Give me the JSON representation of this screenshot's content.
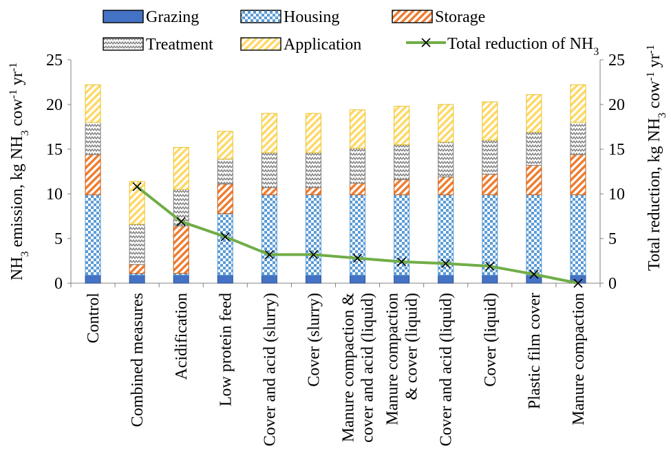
{
  "chart_data": {
    "type": "bar",
    "stacked": true,
    "categories": [
      "Control",
      "Combined measures",
      "Acidification",
      "Low protein feed",
      "Cover and acid (slurry)",
      "Cover (slurry)",
      "Manure compaction & cover and acid (liquid)",
      "Manure compaction & cover (liquid)",
      "Cover and acid (liquid)",
      "Cover (liquid)",
      "Plastic film cover",
      "Manure compaction"
    ],
    "category_lines": [
      [
        "Control"
      ],
      [
        "Combined measures"
      ],
      [
        "Acidification"
      ],
      [
        "Low protein feed"
      ],
      [
        "Cover and acid (slurry)"
      ],
      [
        "Cover (slurry)"
      ],
      [
        "Manure compaction &",
        "cover and acid (liquid)"
      ],
      [
        "Manure compaction",
        "& cover (liquid)"
      ],
      [
        "Cover and acid (liquid)"
      ],
      [
        "Cover (liquid)"
      ],
      [
        "Plastic film cover"
      ],
      [
        "Manure compaction"
      ]
    ],
    "series": [
      {
        "name": "Grazing",
        "pattern": "solid",
        "color": "#4472c4",
        "values": [
          0.9,
          0.9,
          0.9,
          0.9,
          0.9,
          0.9,
          0.9,
          0.9,
          0.9,
          0.9,
          0.9,
          0.9
        ]
      },
      {
        "name": "Housing",
        "pattern": "checker",
        "color": "#5b9bd5",
        "values": [
          9.0,
          0.2,
          0.2,
          6.9,
          9.0,
          9.0,
          9.0,
          9.0,
          9.0,
          9.0,
          9.0,
          9.0
        ]
      },
      {
        "name": "Storage",
        "pattern": "diagonal",
        "color": "#ed7d31",
        "values": [
          4.5,
          1.0,
          5.3,
          3.3,
          0.8,
          0.8,
          1.3,
          1.7,
          2.0,
          2.3,
          3.3,
          4.5
        ]
      },
      {
        "name": "Treatment",
        "pattern": "wave",
        "color": "#808080",
        "values": [
          3.6,
          4.5,
          4.1,
          2.8,
          3.9,
          3.9,
          3.9,
          3.9,
          3.9,
          3.8,
          3.7,
          3.6
        ]
      },
      {
        "name": "Application",
        "pattern": "diagonal",
        "color": "#ffd966",
        "values": [
          4.2,
          4.8,
          4.7,
          3.1,
          4.4,
          4.4,
          4.3,
          4.3,
          4.2,
          4.3,
          4.2,
          4.2
        ]
      }
    ],
    "line_series": {
      "name": "Total reduction of NH",
      "name_sub": "3",
      "color": "#70ad47",
      "marker": "x",
      "axis": "right",
      "values": [
        null,
        10.8,
        6.9,
        5.2,
        3.2,
        3.2,
        2.8,
        2.4,
        2.2,
        1.9,
        1.0,
        0.0
      ]
    },
    "y_left": {
      "min": 0,
      "max": 25,
      "ticks": [
        0,
        5,
        10,
        15,
        20,
        25
      ]
    },
    "y_right": {
      "min": 0,
      "max": 25,
      "ticks": [
        0,
        5,
        10,
        15,
        20,
        25
      ]
    },
    "ylabel_left": {
      "prefix": "NH",
      "sub": "3",
      "mid": " emission, kg NH",
      "sub2": "3",
      "mid2": " cow",
      "sup": "-1",
      "end": " yr",
      "sup2": "-1"
    },
    "ylabel_right": {
      "prefix": "Total reduction, kg NH",
      "sub": "3",
      "mid": " cow",
      "sup": "-1",
      "end": " yr",
      "sup2": "-1"
    },
    "legend_position": "top",
    "grid": false
  }
}
